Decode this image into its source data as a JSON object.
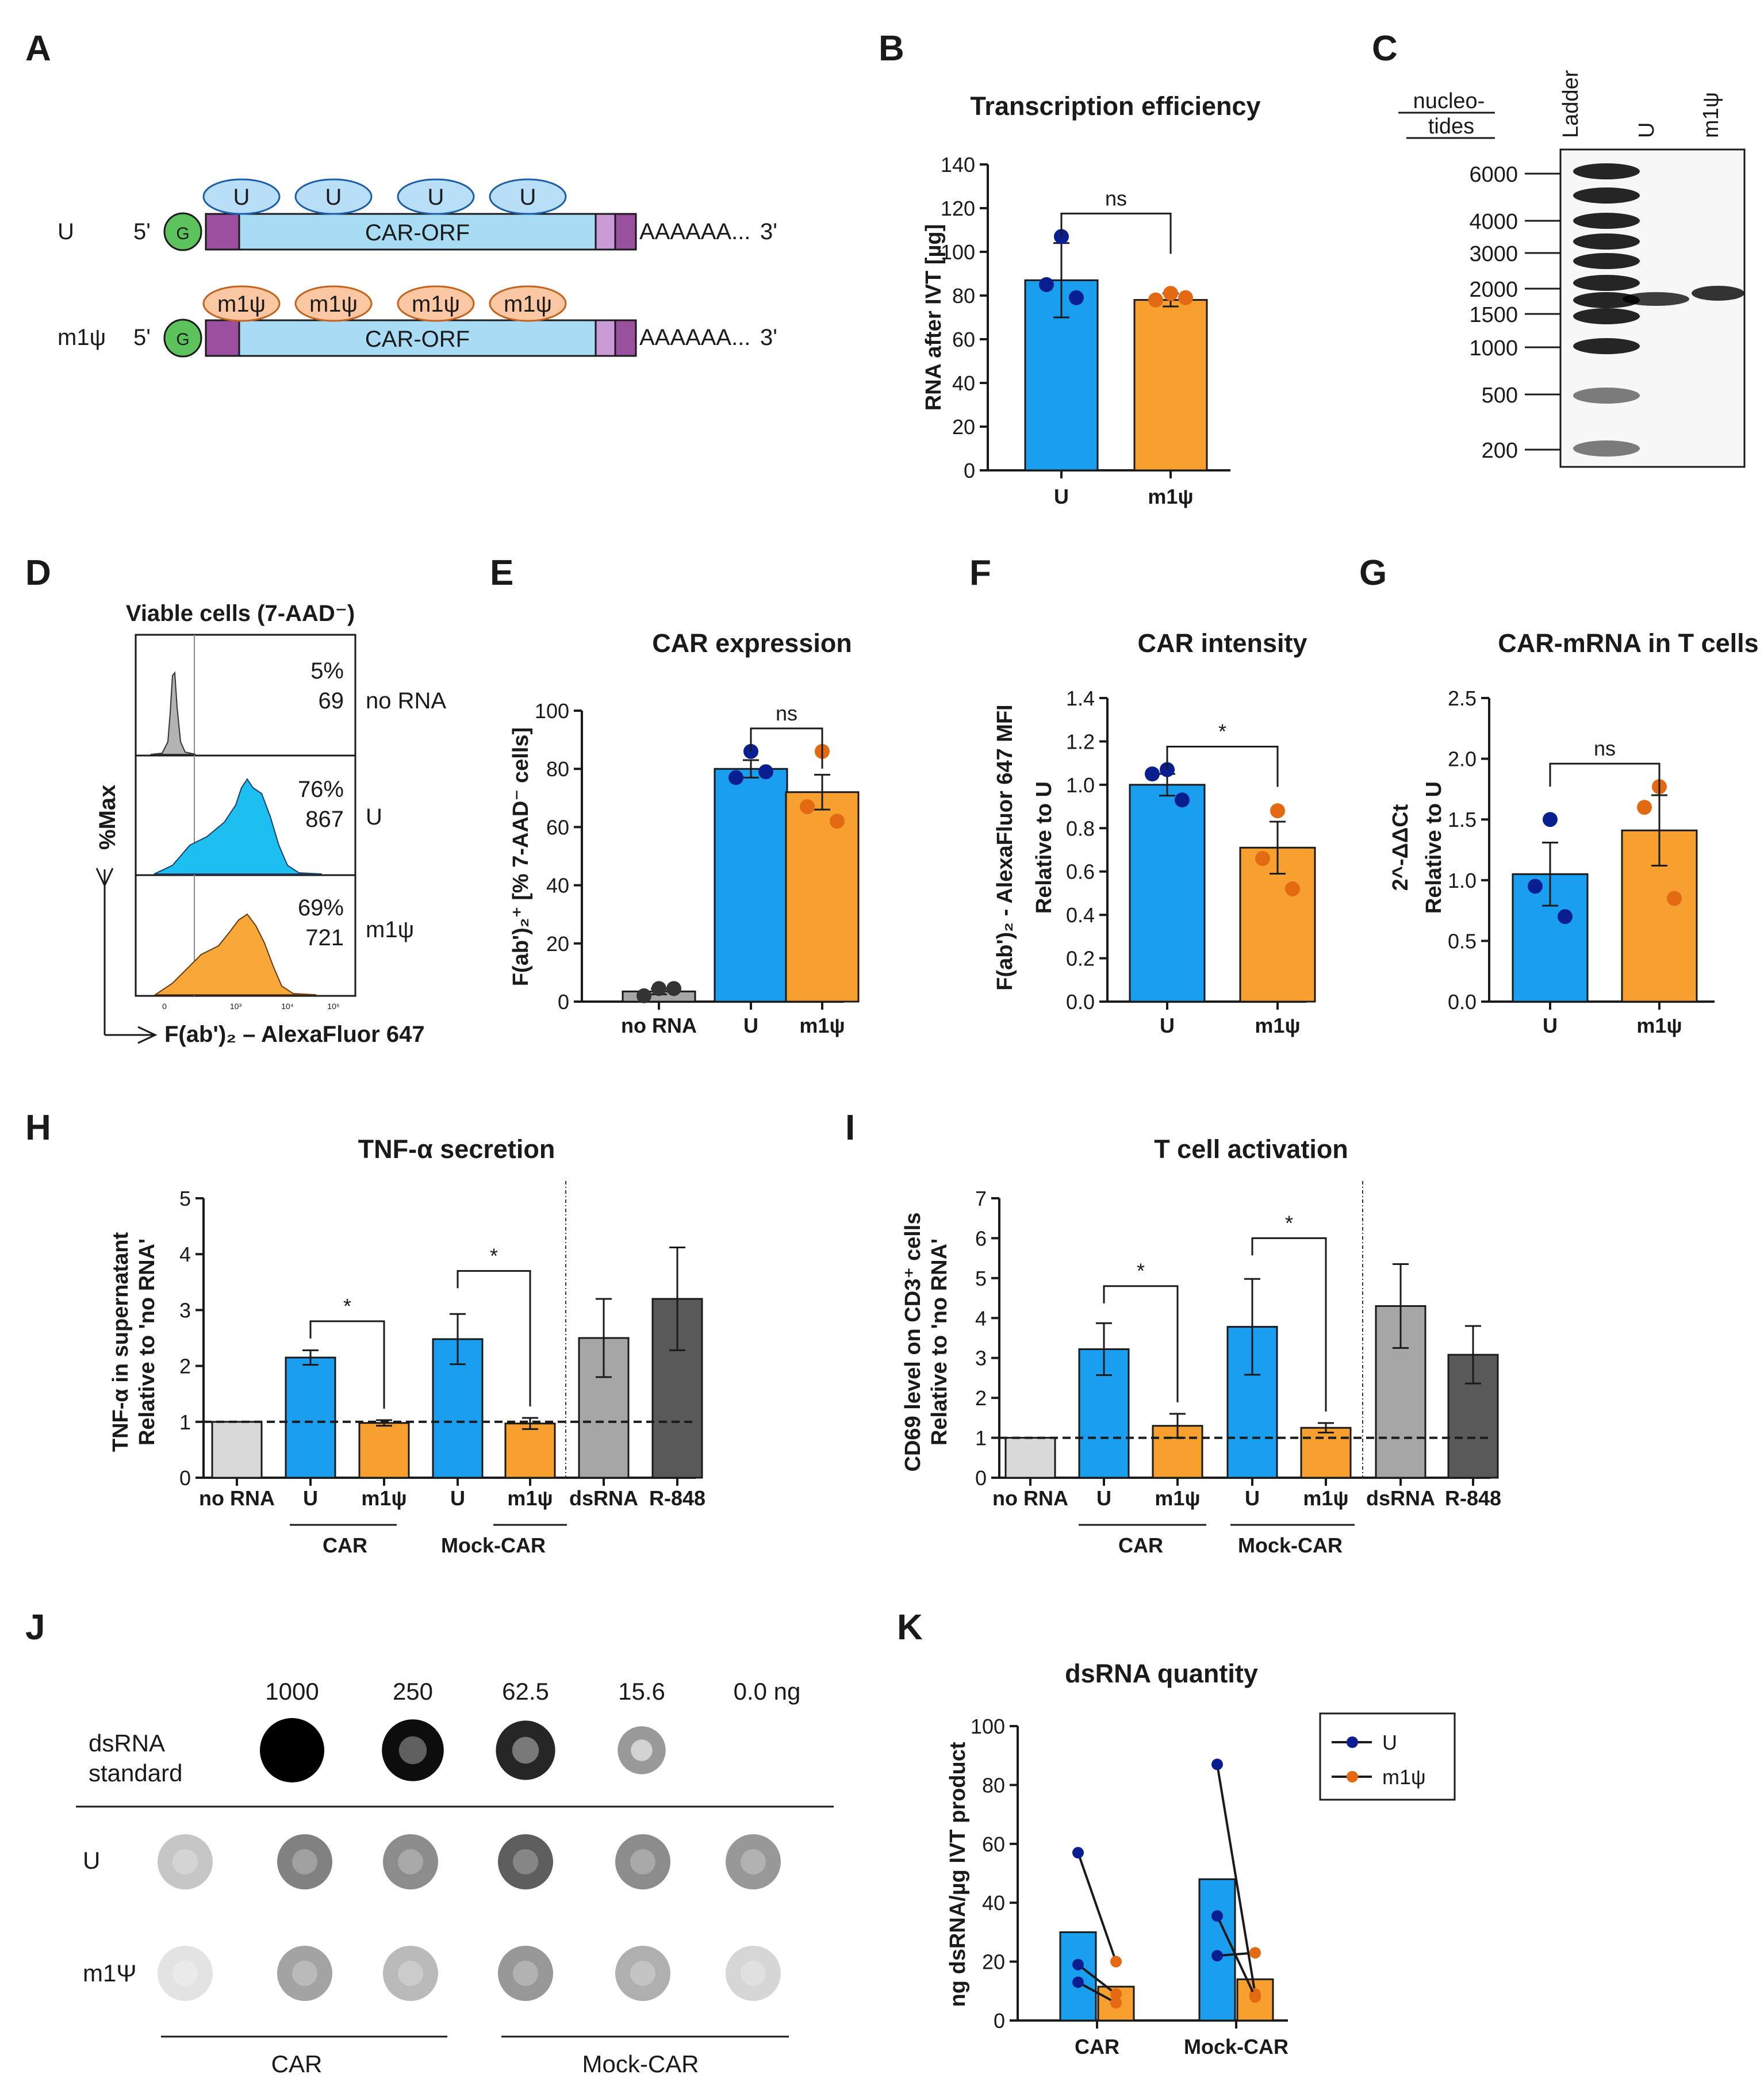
{
  "panels": {
    "A": {
      "letter": "A",
      "rows": [
        {
          "label": "U",
          "five": "5'",
          "cap": "G",
          "orf": "CAR-ORF",
          "tail": "AAAAAA...",
          "three": "3'",
          "nuc": [
            "U",
            "U",
            "U",
            "U"
          ]
        },
        {
          "label": "m1ψ",
          "five": "5'",
          "cap": "G",
          "orf": "CAR-ORF",
          "tail": "AAAAAA...",
          "three": "3'",
          "nuc": [
            "m1ψ",
            "m1ψ",
            "m1ψ",
            "m1ψ"
          ]
        }
      ]
    },
    "B": {
      "letter": "B"
    },
    "C": {
      "letter": "C",
      "header1": "nucleo-",
      "header2": "tides",
      "lanes": [
        "Ladder",
        "U",
        "m1ψ"
      ],
      "markers": [
        "6000",
        "4000",
        "3000",
        "2000",
        "1500",
        "1000",
        "500",
        "200"
      ]
    },
    "D": {
      "letter": "D",
      "title": "Viable cells (7-AAD⁻)",
      "ylabel": "%Max",
      "xlabel": "F(ab')₂ – AlexaFluor 647",
      "rows": [
        {
          "pct": "5%",
          "mfi": "69",
          "name": "no RNA"
        },
        {
          "pct": "76%",
          "mfi": "867",
          "name": "U"
        },
        {
          "pct": "69%",
          "mfi": "721",
          "name": "m1ψ"
        }
      ],
      "xticks": [
        "0",
        "10³",
        "10⁴",
        "10⁵"
      ]
    },
    "E": {
      "letter": "E"
    },
    "F": {
      "letter": "F"
    },
    "G": {
      "letter": "G"
    },
    "H": {
      "letter": "H",
      "groups": [
        "CAR",
        "Mock-CAR"
      ]
    },
    "I": {
      "letter": "I",
      "groups": [
        "CAR",
        "Mock-CAR"
      ]
    },
    "J": {
      "letter": "J",
      "row_labels": [
        "dsRNA",
        "standard",
        "U",
        "m1Ψ"
      ],
      "conc": [
        "1000",
        "250",
        "62.5",
        "15.6",
        "0.0 ng"
      ],
      "groups": [
        "CAR",
        "Mock-CAR"
      ],
      "intensity": {
        "standard": [
          1.0,
          0.9,
          0.8,
          0.35,
          0.0
        ],
        "U": [
          0.25,
          0.55,
          0.5,
          0.7,
          0.5,
          0.45
        ],
        "m1psi": [
          0.12,
          0.4,
          0.3,
          0.45,
          0.35,
          0.18
        ]
      }
    },
    "K": {
      "letter": "K",
      "legend": [
        "U",
        "m1ψ"
      ]
    }
  },
  "colors": {
    "blue": "#1a9ef0",
    "orange": "#f7a030",
    "gray_light": "#d9d9d9",
    "gray_mid": "#a6a6a6",
    "gray_dark": "#595959",
    "dot_blue": "#0a1f8f",
    "dot_orange": "#e36a12",
    "dot_gray": "#333333",
    "cap_green": "#5cc25c",
    "orf_blue": "#a8dcf5",
    "utr_purple": "#9a4f9e"
  },
  "chart_data": [
    {
      "id": "B",
      "type": "bar",
      "title": "Transcription efficiency",
      "ylabel": "RNA after IVT [µg]",
      "ylim": [
        0,
        140
      ],
      "yticks": [
        0,
        20,
        40,
        60,
        80,
        100,
        120,
        140
      ],
      "categories": [
        "U",
        "m1ψ"
      ],
      "values": [
        87,
        78
      ],
      "err": [
        17,
        3
      ],
      "points": [
        [
          107,
          85,
          79
        ],
        [
          81,
          78,
          79
        ]
      ],
      "colors": [
        "blue",
        "orange"
      ],
      "comparisons": [
        {
          "from": 0,
          "to": 1,
          "label": "ns"
        }
      ]
    },
    {
      "id": "E",
      "type": "bar",
      "title": "CAR expression",
      "ylabel": "F(ab')₂⁺ [% 7-AAD⁻ cells]",
      "ylim": [
        0,
        100
      ],
      "yticks": [
        0,
        20,
        40,
        60,
        80,
        100
      ],
      "categories": [
        "no RNA",
        "U",
        "m1ψ"
      ],
      "values": [
        3.5,
        80,
        72
      ],
      "err": [
        1,
        3,
        6
      ],
      "points": [
        [
          4.5,
          2,
          4.5
        ],
        [
          86,
          77,
          79
        ],
        [
          86,
          67,
          62
        ]
      ],
      "colors": [
        "gray_mid",
        "blue",
        "orange"
      ],
      "comparisons": [
        {
          "from": 1,
          "to": 2,
          "label": "ns"
        }
      ]
    },
    {
      "id": "F",
      "type": "bar",
      "title": "CAR intensity",
      "ylabel": "F(ab')₂ - AlexaFluor 647 MFI",
      "ylabel2": "Relative to U",
      "ylim": [
        0,
        1.4
      ],
      "yticks": [
        0,
        0.2,
        0.4,
        0.6,
        0.8,
        1.0,
        1.2,
        1.4
      ],
      "categories": [
        "U",
        "m1ψ"
      ],
      "values": [
        1.0,
        0.71
      ],
      "err": [
        0.05,
        0.12
      ],
      "points": [
        [
          1.07,
          1.05,
          0.93
        ],
        [
          0.88,
          0.66,
          0.52
        ]
      ],
      "colors": [
        "blue",
        "orange"
      ],
      "comparisons": [
        {
          "from": 0,
          "to": 1,
          "label": "*"
        }
      ]
    },
    {
      "id": "G",
      "type": "bar",
      "title": "CAR-mRNA in T cells",
      "ylabel": "2^-ΔΔCt",
      "ylabel2": "Relative to U",
      "ylim": [
        0,
        2.5
      ],
      "yticks": [
        0,
        0.5,
        1.0,
        1.5,
        2.0,
        2.5
      ],
      "categories": [
        "U",
        "m1ψ"
      ],
      "values": [
        1.05,
        1.41
      ],
      "err": [
        0.26,
        0.29
      ],
      "points": [
        [
          1.5,
          0.95,
          0.7
        ],
        [
          1.77,
          1.6,
          0.85
        ]
      ],
      "colors": [
        "blue",
        "orange"
      ],
      "comparisons": [
        {
          "from": 0,
          "to": 1,
          "label": "ns"
        }
      ]
    },
    {
      "id": "H",
      "type": "bar",
      "title": "TNF-α secretion",
      "ylabel": "TNF-α in supernatant",
      "ylabel2": "Relative to 'no RNA'",
      "ylim": [
        0,
        5
      ],
      "yticks": [
        0,
        1,
        2,
        3,
        4,
        5
      ],
      "categories": [
        "no RNA",
        "U",
        "m1ψ",
        "U",
        "m1ψ",
        "dsRNA",
        "R-848"
      ],
      "values": [
        1.0,
        2.15,
        0.98,
        2.48,
        0.97,
        2.5,
        3.2
      ],
      "err": [
        0,
        0.13,
        0.05,
        0.45,
        0.1,
        0.7,
        0.92
      ],
      "colors": [
        "gray_light",
        "blue",
        "orange",
        "blue",
        "orange",
        "gray_mid",
        "gray_dark"
      ],
      "reference_line": 1,
      "comparisons": [
        {
          "from": 1,
          "to": 2,
          "label": "*",
          "level": 2.8
        },
        {
          "from": 3,
          "to": 4,
          "label": "*",
          "level": 3.7
        }
      ]
    },
    {
      "id": "I",
      "type": "bar",
      "title": "T cell activation",
      "ylabel": "CD69 level on CD3⁺ cells",
      "ylabel2": "Relative to 'no RNA'",
      "ylim": [
        0,
        7
      ],
      "yticks": [
        0,
        1,
        2,
        3,
        4,
        5,
        6,
        7
      ],
      "categories": [
        "no RNA",
        "U",
        "m1ψ",
        "U",
        "m1ψ",
        "dsRNA",
        "R-848"
      ],
      "values": [
        1.0,
        3.22,
        1.3,
        3.78,
        1.25,
        4.3,
        3.08
      ],
      "err": [
        0,
        0.65,
        0.3,
        1.2,
        0.12,
        1.05,
        0.72
      ],
      "colors": [
        "gray_light",
        "blue",
        "orange",
        "blue",
        "orange",
        "gray_mid",
        "gray_dark"
      ],
      "reference_line": 1,
      "comparisons": [
        {
          "from": 1,
          "to": 2,
          "label": "*",
          "level": 4.8
        },
        {
          "from": 3,
          "to": 4,
          "label": "*",
          "level": 6.0
        }
      ]
    },
    {
      "id": "K",
      "type": "bar",
      "title": "dsRNA quantity",
      "ylabel": "ng dsRNA/µg IVT product",
      "ylim": [
        0,
        100
      ],
      "yticks": [
        0,
        20,
        40,
        60,
        80,
        100
      ],
      "categories": [
        "CAR",
        "Mock-CAR"
      ],
      "series": [
        {
          "name": "U",
          "values": [
            30,
            48
          ]
        },
        {
          "name": "m1ψ",
          "values": [
            11.5,
            14
          ]
        }
      ],
      "pairs": [
        [
          [
            57,
            20
          ],
          [
            19,
            9
          ],
          [
            13,
            6
          ]
        ],
        [
          [
            87,
            9
          ],
          [
            35.5,
            8
          ],
          [
            22,
            23
          ]
        ]
      ]
    }
  ]
}
